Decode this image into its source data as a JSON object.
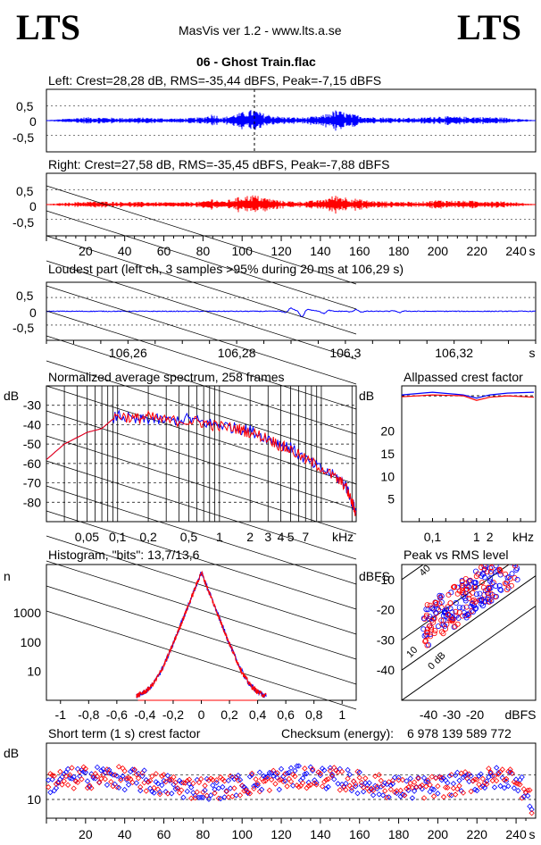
{
  "header": {
    "logo_left": "LTS",
    "logo_right": "LTS",
    "app_title": "MasVis ver 1.2 - www.lts.a.se",
    "track_title": "06 - Ghost Train.flac"
  },
  "colors": {
    "left": "#0000ff",
    "right": "#ff0000",
    "axis": "#000000"
  },
  "chart_data": [
    {
      "id": "left_waveform",
      "type": "line",
      "title": "Left: Crest=28,28 dB, RMS=-35,44 dBFS, Peak=-7,15 dBFS",
      "ylim": [
        -1,
        1
      ],
      "xlim": [
        0,
        250
      ],
      "yticks": [
        "0,5",
        "0",
        "-0,5"
      ],
      "marker_x": 106.29,
      "envelope": [
        [
          0,
          0.01
        ],
        [
          10,
          0.05
        ],
        [
          20,
          0.09
        ],
        [
          30,
          0.08
        ],
        [
          40,
          0.07
        ],
        [
          50,
          0.08
        ],
        [
          60,
          0.06
        ],
        [
          70,
          0.06
        ],
        [
          80,
          0.09
        ],
        [
          85,
          0.18
        ],
        [
          90,
          0.08
        ],
        [
          100,
          0.22
        ],
        [
          106,
          0.3
        ],
        [
          110,
          0.2
        ],
        [
          120,
          0.1
        ],
        [
          130,
          0.08
        ],
        [
          140,
          0.12
        ],
        [
          148,
          0.28
        ],
        [
          155,
          0.18
        ],
        [
          165,
          0.1
        ],
        [
          175,
          0.08
        ],
        [
          190,
          0.07
        ],
        [
          200,
          0.12
        ],
        [
          210,
          0.1
        ],
        [
          220,
          0.1
        ],
        [
          230,
          0.09
        ],
        [
          240,
          0.06
        ],
        [
          245,
          0.03
        ],
        [
          250,
          0.01
        ]
      ]
    },
    {
      "id": "right_waveform",
      "type": "line",
      "title": "Right: Crest=27,58 dB, RMS=-35,45 dBFS, Peak=-7,88 dBFS",
      "ylim": [
        -1,
        1
      ],
      "xlim": [
        0,
        250
      ],
      "yticks": [
        "0,5",
        "0",
        "-0,5"
      ],
      "xticks": [
        "20",
        "40",
        "60",
        "80",
        "100",
        "120",
        "140",
        "160",
        "180",
        "200",
        "220",
        "240"
      ],
      "x_unit": "s",
      "envelope": [
        [
          0,
          0.01
        ],
        [
          10,
          0.05
        ],
        [
          20,
          0.08
        ],
        [
          30,
          0.08
        ],
        [
          40,
          0.07
        ],
        [
          50,
          0.07
        ],
        [
          60,
          0.06
        ],
        [
          70,
          0.06
        ],
        [
          80,
          0.08
        ],
        [
          85,
          0.16
        ],
        [
          90,
          0.08
        ],
        [
          100,
          0.22
        ],
        [
          106,
          0.26
        ],
        [
          110,
          0.2
        ],
        [
          120,
          0.1
        ],
        [
          130,
          0.08
        ],
        [
          140,
          0.12
        ],
        [
          148,
          0.25
        ],
        [
          155,
          0.18
        ],
        [
          165,
          0.1
        ],
        [
          175,
          0.08
        ],
        [
          190,
          0.07
        ],
        [
          200,
          0.12
        ],
        [
          210,
          0.1
        ],
        [
          220,
          0.1
        ],
        [
          230,
          0.09
        ],
        [
          240,
          0.06
        ],
        [
          245,
          0.03
        ],
        [
          250,
          0.01
        ]
      ]
    },
    {
      "id": "loudest_part",
      "type": "line",
      "title": "Loudest part (left  ch, 3 samples >95% during 20 ms at 106,29 s)",
      "ylim": [
        -1,
        1
      ],
      "xlim": [
        106.245,
        106.335
      ],
      "yticks": [
        "0,5",
        "0",
        "-0,5"
      ],
      "xticks": [
        106.26,
        106.28,
        106.3,
        106.32
      ],
      "xtick_labels": [
        "106,26",
        "106,28",
        "106,3",
        "106,32"
      ],
      "x_unit": "s",
      "spikes": [
        [
          106.29,
          0.12
        ],
        [
          106.292,
          -0.2
        ],
        [
          106.294,
          0.05
        ],
        [
          106.296,
          -0.08
        ],
        [
          106.302,
          0.06
        ],
        [
          106.31,
          -0.05
        ]
      ]
    },
    {
      "id": "spectrum",
      "type": "line",
      "title": "Normalized average spectrum, 258 frames",
      "ylabel": "dB",
      "yticks": [
        "-30",
        "-40",
        "-50",
        "-60",
        "-70",
        "-80"
      ],
      "ylim": [
        -90,
        -20
      ],
      "x_scale": "log",
      "xlim": [
        0.02,
        22
      ],
      "xtick_labels": [
        "0,05",
        "0,1",
        "0,2",
        "0,5",
        "1",
        "2",
        "3",
        "4",
        "5",
        "7",
        "kHz"
      ],
      "series": [
        {
          "values": [
            [
              0.02,
              -58
            ],
            [
              0.03,
              -50
            ],
            [
              0.05,
              -44
            ],
            [
              0.07,
              -42
            ],
            [
              0.1,
              -35
            ],
            [
              0.15,
              -38
            ],
            [
              0.2,
              -37
            ],
            [
              0.3,
              -38
            ],
            [
              0.5,
              -37
            ],
            [
              0.7,
              -39
            ],
            [
              1,
              -40
            ],
            [
              1.5,
              -42
            ],
            [
              2,
              -43
            ],
            [
              3,
              -47
            ],
            [
              4,
              -50
            ],
            [
              5,
              -52
            ],
            [
              7,
              -58
            ],
            [
              10,
              -63
            ],
            [
              14,
              -67
            ],
            [
              17,
              -70
            ],
            [
              20,
              -80
            ],
            [
              22,
              -85
            ]
          ]
        },
        {
          "values": [
            [
              0.02,
              -58
            ],
            [
              0.03,
              -50
            ],
            [
              0.05,
              -44
            ],
            [
              0.07,
              -42
            ],
            [
              0.1,
              -35
            ],
            [
              0.15,
              -37
            ],
            [
              0.2,
              -36
            ],
            [
              0.3,
              -38
            ],
            [
              0.5,
              -38
            ],
            [
              0.7,
              -39
            ],
            [
              1,
              -41
            ],
            [
              1.5,
              -42
            ],
            [
              2,
              -44
            ],
            [
              3,
              -47
            ],
            [
              4,
              -51
            ],
            [
              5,
              -53
            ],
            [
              7,
              -58
            ],
            [
              10,
              -62
            ],
            [
              14,
              -68
            ],
            [
              17,
              -71
            ],
            [
              20,
              -80
            ],
            [
              22,
              -86
            ]
          ]
        }
      ]
    },
    {
      "id": "allpassed_crest",
      "type": "line",
      "title": "Allpassed crest factor",
      "ylabel": "dB",
      "yticks": [
        "20",
        "15",
        "10",
        "5"
      ],
      "ylim": [
        0,
        30
      ],
      "x_scale": "log",
      "xtick_labels": [
        "0,1",
        "1",
        "2",
        "kHz"
      ],
      "series": [
        {
          "values": [
            [
              0.02,
              28
            ],
            [
              0.1,
              28.6
            ],
            [
              0.5,
              28
            ],
            [
              1,
              27.3
            ],
            [
              2,
              28
            ],
            [
              5,
              28.4
            ],
            [
              20,
              28.6
            ]
          ]
        },
        {
          "values": [
            [
              0.02,
              27.6
            ],
            [
              0.1,
              28
            ],
            [
              0.5,
              27.8
            ],
            [
              1,
              26.8
            ],
            [
              2,
              27.5
            ],
            [
              5,
              27.8
            ],
            [
              20,
              27.5
            ]
          ]
        }
      ],
      "ref_line": 27.8
    },
    {
      "id": "histogram",
      "type": "line",
      "title": "Histogram, \"bits\": 13,7/13,6",
      "ylabel": "n",
      "y_scale": "log",
      "yticks": [
        "1000",
        "100",
        "10"
      ],
      "xtick_labels": [
        "-1",
        "-0,8",
        "-0,6",
        "-0,4",
        "-0,2",
        "0",
        "0,2",
        "0,4",
        "0,6",
        "0,8",
        "1"
      ],
      "xlim": [
        -1.1,
        1.1
      ]
    },
    {
      "id": "peak_vs_rms",
      "type": "scatter",
      "title": "Peak vs RMS level",
      "ylabel": "dBFS",
      "xlabel": "dBFS",
      "yticks": [
        "-10",
        "-20",
        "-30",
        "-40"
      ],
      "xtick_labels": [
        "-40",
        "-30",
        "-20"
      ],
      "diagonal_labels": [
        "40",
        "10",
        "0 dB"
      ]
    },
    {
      "id": "short_term_crest",
      "type": "scatter",
      "title": "Short term (1 s) crest factor",
      "ylabel": "dB",
      "yticks": [
        "10"
      ],
      "xtick_labels": [
        "20",
        "40",
        "60",
        "80",
        "100",
        "120",
        "140",
        "160",
        "180",
        "200",
        "220",
        "240"
      ],
      "x_unit": "s",
      "xlim": [
        0,
        250
      ]
    }
  ],
  "checksum": {
    "label": "Checksum (energy):",
    "value": "6 978 139 589 772"
  }
}
